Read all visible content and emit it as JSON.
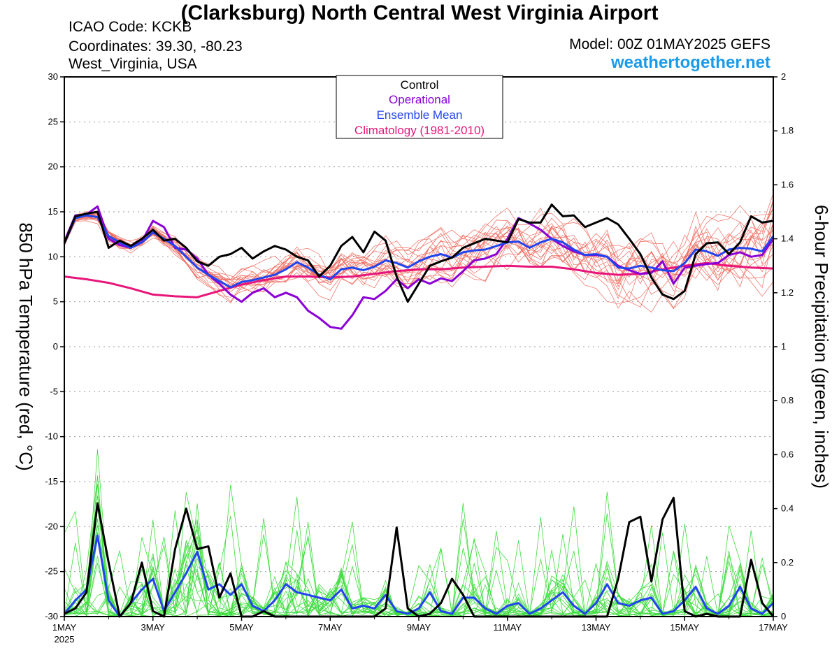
{
  "header": {
    "title": "(Clarksburg) North Central West Virginia Airport",
    "icao": "ICAO Code: KCKB",
    "coordinates": "Coordinates: 39.30, -80.23",
    "region": "West_Virginia, USA",
    "model": "Model: 00Z 01MAY2025 GEFS",
    "site": "weathertogether.net"
  },
  "chart_data": {
    "type": "line",
    "title": "(Clarksburg) North Central West Virginia Airport",
    "ylabel_left": "850 hPa Temperature (red, °C)",
    "ylabel_right": "6-hour Precipitation (green, inches)",
    "ylim_left": [
      -30,
      30
    ],
    "ylim_right": [
      0,
      2
    ],
    "xlim": [
      0,
      16
    ],
    "x_unit": "days since 1 MAY 2025 00Z",
    "yticks_left": [
      "30",
      "25",
      "20",
      "15",
      "10",
      "5",
      "0",
      "-5",
      "-10",
      "-15",
      "-20",
      "-25",
      "-30"
    ],
    "yticks_right": [
      "2",
      "1.8",
      "1.6",
      "1.4",
      "1.2",
      "1",
      "0.8",
      "0.6",
      "0.4",
      "0.2",
      "0"
    ],
    "xticks": [
      {
        "x": 0,
        "label": "1MAY",
        "sub": "2025"
      },
      {
        "x": 2,
        "label": "3MAY",
        "sub": ""
      },
      {
        "x": 4,
        "label": "5MAY",
        "sub": ""
      },
      {
        "x": 6,
        "label": "7MAY",
        "sub": ""
      },
      {
        "x": 8,
        "label": "9MAY",
        "sub": ""
      },
      {
        "x": 10,
        "label": "11MAY",
        "sub": ""
      },
      {
        "x": 12,
        "label": "13MAY",
        "sub": ""
      },
      {
        "x": 14,
        "label": "15MAY",
        "sub": ""
      },
      {
        "x": 16,
        "label": "17MAY",
        "sub": ""
      }
    ],
    "grid": "dotted horizontal",
    "legend": {
      "position": "top-center",
      "entries": [
        {
          "label": "Control",
          "color": "#000000"
        },
        {
          "label": "Operational",
          "color": "#8b00d6"
        },
        {
          "label": "Ensemble Mean",
          "color": "#2244ee"
        },
        {
          "label": "Climatology (1981-2010)",
          "color": "#e8157a"
        }
      ]
    },
    "colors": {
      "members_temp": "#f06a5e",
      "members_precip": "#3fdc3f",
      "control": "#000000",
      "operational": "#8b00d6",
      "mean": "#2244ee",
      "climatology": "#e8157a"
    },
    "series": [
      {
        "name": "Control",
        "axis": "temp",
        "x": [
          0,
          0.25,
          0.5,
          0.75,
          1,
          1.25,
          1.5,
          1.75,
          2,
          2.25,
          2.5,
          2.75,
          3,
          3.25,
          3.5,
          3.75,
          4,
          4.25,
          4.5,
          4.75,
          5,
          5.25,
          5.5,
          5.75,
          6,
          6.25,
          6.5,
          6.75,
          7,
          7.25,
          7.5,
          7.75,
          8,
          8.25,
          8.5,
          8.75,
          9,
          9.25,
          9.5,
          9.75,
          10,
          10.25,
          10.5,
          10.75,
          11,
          11.25,
          11.5,
          11.75,
          12,
          12.25,
          12.5,
          12.75,
          13,
          13.25,
          13.5,
          13.75,
          14,
          14.25,
          14.5,
          14.75,
          15,
          15.25,
          15.5,
          15.75,
          16
        ],
        "values": [
          11.5,
          14.5,
          14.8,
          15.0,
          11.0,
          11.8,
          11.2,
          12.0,
          13.0,
          11.8,
          12.0,
          11.0,
          9.5,
          9.0,
          10.0,
          10.3,
          11.0,
          9.8,
          10.6,
          11.2,
          10.8,
          10.0,
          9.6,
          7.8,
          9.0,
          11.2,
          12.2,
          10.5,
          12.8,
          11.8,
          7.8,
          5.0,
          7.0,
          9.0,
          9.5,
          9.9,
          11.0,
          11.5,
          12.0,
          11.8,
          11.6,
          14.2,
          13.8,
          13.8,
          15.8,
          14.5,
          14.6,
          13.3,
          13.8,
          14.3,
          13.6,
          12.0,
          10.3,
          7.7,
          5.8,
          5.3,
          6.2,
          10.3,
          11.5,
          11.6,
          10.3,
          11.6,
          14.5,
          13.8,
          14.0
        ]
      },
      {
        "name": "Operational",
        "axis": "temp",
        "x": [
          0,
          0.25,
          0.5,
          0.75,
          1,
          1.25,
          1.5,
          1.75,
          2,
          2.25,
          2.5,
          2.75,
          3,
          3.25,
          3.5,
          3.75,
          4,
          4.25,
          4.5,
          4.75,
          5,
          5.25,
          5.5,
          5.75,
          6,
          6.25,
          6.5,
          6.75,
          7,
          7.25,
          7.5,
          7.75,
          8,
          8.25,
          8.5,
          8.75,
          9,
          9.25,
          9.5,
          9.75,
          10,
          10.25,
          10.5,
          10.75,
          11,
          11.25,
          11.5,
          11.75,
          12,
          12.25,
          12.5,
          12.75,
          13,
          13.25,
          13.5,
          13.75,
          14,
          14.25,
          14.5,
          14.75,
          15,
          15.25,
          15.5,
          15.75,
          16
        ],
        "values": [
          11.7,
          14.6,
          14.7,
          15.6,
          12.0,
          11.3,
          11.0,
          11.7,
          14.0,
          13.3,
          11.0,
          10.8,
          9.8,
          8.0,
          7.0,
          5.8,
          5.0,
          6.0,
          6.5,
          5.5,
          6.0,
          5.5,
          4.0,
          3.2,
          2.2,
          2.0,
          3.5,
          5.5,
          5.3,
          6.2,
          7.5,
          6.5,
          7.5,
          7.0,
          7.6,
          7.3,
          8.4,
          9.6,
          9.8,
          10.3,
          12.0,
          14.3,
          13.7,
          13.0,
          12.0,
          11.2,
          10.6,
          10.2,
          10.2,
          10.0,
          9.0,
          8.5,
          8.1,
          8.2,
          9.5,
          7.0,
          8.8,
          9.0,
          9.2,
          9.3,
          10.2,
          10.5,
          10.0,
          10.2,
          12.0
        ]
      },
      {
        "name": "Ensemble Mean",
        "axis": "temp",
        "x": [
          0,
          0.25,
          0.5,
          0.75,
          1,
          1.25,
          1.5,
          1.75,
          2,
          2.25,
          2.5,
          2.75,
          3,
          3.25,
          3.5,
          3.75,
          4,
          4.25,
          4.5,
          4.75,
          5,
          5.25,
          5.5,
          5.75,
          6,
          6.25,
          6.5,
          6.75,
          7,
          7.25,
          7.5,
          7.75,
          8,
          8.25,
          8.5,
          8.75,
          9,
          9.25,
          9.5,
          9.75,
          10,
          10.25,
          10.5,
          10.75,
          11,
          11.25,
          11.5,
          11.75,
          12,
          12.25,
          12.5,
          12.75,
          13,
          13.25,
          13.5,
          13.75,
          14,
          14.25,
          14.5,
          14.75,
          15,
          15.25,
          15.5,
          15.75,
          16
        ],
        "values": [
          11.5,
          14.3,
          14.6,
          14.4,
          12.3,
          11.6,
          11.0,
          11.6,
          12.7,
          12.0,
          11.2,
          10.0,
          8.8,
          8.0,
          7.3,
          6.6,
          7.2,
          7.4,
          7.7,
          8.0,
          8.6,
          9.4,
          8.8,
          8.0,
          7.5,
          8.6,
          8.8,
          8.5,
          8.9,
          9.6,
          9.3,
          8.8,
          9.5,
          10.0,
          10.3,
          9.9,
          10.5,
          10.7,
          10.8,
          11.2,
          11.6,
          11.7,
          11.0,
          11.6,
          12.0,
          11.6,
          10.8,
          10.2,
          10.3,
          10.0,
          8.8,
          8.7,
          9.0,
          8.8,
          8.5,
          8.4,
          9.3,
          10.8,
          10.6,
          10.1,
          10.8,
          11.0,
          10.9,
          10.6,
          12.3
        ]
      },
      {
        "name": "Climatology (1981-2010)",
        "axis": "temp",
        "x": [
          0,
          0.5,
          1,
          1.5,
          2,
          2.5,
          3,
          3.5,
          4,
          4.5,
          5,
          5.5,
          6,
          6.5,
          7,
          7.5,
          8,
          8.5,
          9,
          9.5,
          10,
          10.5,
          11,
          11.5,
          12,
          12.5,
          13,
          13.5,
          14,
          14.5,
          15,
          15.5,
          16
        ],
        "values": [
          7.8,
          7.5,
          7.1,
          6.5,
          5.8,
          5.6,
          5.5,
          6.2,
          6.9,
          7.4,
          7.8,
          7.8,
          7.7,
          7.8,
          8.1,
          8.4,
          8.6,
          8.6,
          8.8,
          8.9,
          9.0,
          8.9,
          8.9,
          8.6,
          8.2,
          8.0,
          8.1,
          8.6,
          9.0,
          9.3,
          9.0,
          8.8,
          8.7
        ]
      },
      {
        "name": "Control",
        "axis": "precip",
        "x": [
          0,
          0.25,
          0.5,
          0.75,
          1,
          1.25,
          1.5,
          1.75,
          2,
          2.25,
          2.5,
          2.75,
          3,
          3.25,
          3.5,
          3.75,
          4,
          4.25,
          4.5,
          4.75,
          5,
          5.25,
          5.5,
          5.75,
          6,
          6.25,
          6.5,
          6.75,
          7,
          7.25,
          7.5,
          7.75,
          8,
          8.25,
          8.5,
          8.75,
          9,
          9.25,
          9.5,
          9.75,
          10,
          10.25,
          10.5,
          10.75,
          11,
          11.25,
          11.5,
          11.75,
          12,
          12.25,
          12.5,
          12.75,
          13,
          13.25,
          13.5,
          13.75,
          14,
          14.25,
          14.5,
          14.75,
          15,
          15.25,
          15.5,
          15.75,
          16
        ],
        "values": [
          0.01,
          0.03,
          0.09,
          0.42,
          0.2,
          0.0,
          0.05,
          0.2,
          0.02,
          0.0,
          0.25,
          0.4,
          0.25,
          0.26,
          0.07,
          0.16,
          0.0,
          0.0,
          0.02,
          0.0,
          0.0,
          0.0,
          0.0,
          0.0,
          0.0,
          0.0,
          0.0,
          0.0,
          0.0,
          0.03,
          0.33,
          0.03,
          0.0,
          0.01,
          0.05,
          0.14,
          0.08,
          0.0,
          0.0,
          0.0,
          0.0,
          0.0,
          0.0,
          0.0,
          0.0,
          0.0,
          0.0,
          0.0,
          0.0,
          0.0,
          0.14,
          0.35,
          0.37,
          0.13,
          0.36,
          0.44,
          0.02,
          0.0,
          0.01,
          0.0,
          0.0,
          0.0,
          0.21,
          0.05,
          0.0
        ]
      },
      {
        "name": "Ensemble Mean",
        "axis": "precip",
        "x": [
          0,
          0.25,
          0.5,
          0.75,
          1,
          1.25,
          1.5,
          1.75,
          2,
          2.25,
          2.5,
          2.75,
          3,
          3.25,
          3.5,
          3.75,
          4,
          4.25,
          4.5,
          4.75,
          5,
          5.25,
          5.5,
          5.75,
          6,
          6.25,
          6.5,
          6.75,
          7,
          7.25,
          7.5,
          7.75,
          8,
          8.25,
          8.5,
          8.75,
          9,
          9.25,
          9.5,
          9.75,
          10,
          10.25,
          10.5,
          10.75,
          11,
          11.25,
          11.5,
          11.75,
          12,
          12.25,
          12.5,
          12.75,
          13,
          13.25,
          13.5,
          13.75,
          14,
          14.25,
          14.5,
          14.75,
          15,
          15.25,
          15.5,
          15.75,
          16
        ],
        "values": [
          0.01,
          0.06,
          0.1,
          0.3,
          0.06,
          0.0,
          0.05,
          0.1,
          0.14,
          0.02,
          0.09,
          0.16,
          0.24,
          0.1,
          0.12,
          0.08,
          0.12,
          0.04,
          0.02,
          0.06,
          0.12,
          0.09,
          0.08,
          0.07,
          0.06,
          0.1,
          0.03,
          0.04,
          0.03,
          0.08,
          0.02,
          0.01,
          0.03,
          0.09,
          0.02,
          0.01,
          0.07,
          0.07,
          0.03,
          0.01,
          0.04,
          0.05,
          0.01,
          0.03,
          0.06,
          0.09,
          0.04,
          0.01,
          0.05,
          0.12,
          0.05,
          0.04,
          0.06,
          0.07,
          0.01,
          0.02,
          0.06,
          0.11,
          0.03,
          0.01,
          0.04,
          0.11,
          0.03,
          0.01,
          0.05
        ]
      }
    ]
  }
}
